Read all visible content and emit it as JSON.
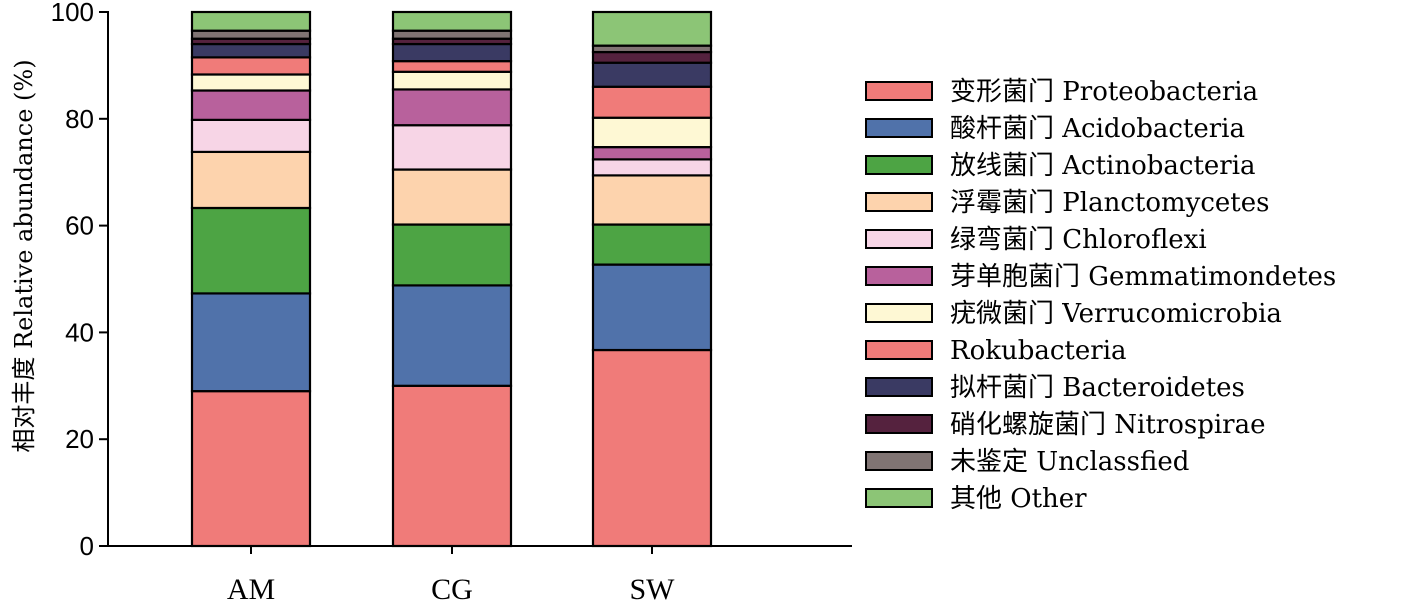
{
  "chart_data": {
    "type": "bar",
    "stacked": true,
    "title": "",
    "xlabel": "",
    "ylabel": "相对丰度 Relative abundance (%)",
    "ylim": [
      0,
      100
    ],
    "yticks": [
      0,
      20,
      40,
      60,
      80,
      100
    ],
    "categories": [
      "AM",
      "CG",
      "SW"
    ],
    "legend_position": "right",
    "grid": false,
    "series": [
      {
        "name": "变形菌门 Proteobacteria",
        "color": "#F07B79",
        "values": [
          29.0,
          30.0,
          36.7
        ]
      },
      {
        "name": "酸杆菌门 Acidobacteria",
        "color": "#5072AA",
        "values": [
          18.3,
          18.8,
          16.0
        ]
      },
      {
        "name": "放线菌门 Actinobacteria",
        "color": "#4DA444",
        "values": [
          16.0,
          11.4,
          7.5
        ]
      },
      {
        "name": "浮霉菌门 Planctomycetes",
        "color": "#FDD3AD",
        "values": [
          10.5,
          10.3,
          9.2
        ]
      },
      {
        "name": "绿弯菌门 Chloroflexi",
        "color": "#F7D5E6",
        "values": [
          6.0,
          8.3,
          3.0
        ]
      },
      {
        "name": "芽单胞菌门 Gemmatimondetes",
        "color": "#B8619C",
        "values": [
          5.5,
          6.7,
          2.3
        ]
      },
      {
        "name": "疣微菌门 Verrucomicrobia",
        "color": "#FEF8D4",
        "values": [
          3.0,
          3.3,
          5.5
        ]
      },
      {
        "name": "Rokubacteria",
        "color": "#F07B79",
        "values": [
          3.2,
          2.0,
          5.8
        ]
      },
      {
        "name": "拟杆菌门 Bacteroidetes",
        "color": "#3A3A63",
        "values": [
          2.5,
          3.2,
          4.5
        ]
      },
      {
        "name": "硝化螺旋菌门 Nitrospirae",
        "color": "#55223E",
        "values": [
          1.0,
          1.0,
          2.0
        ]
      },
      {
        "name": "未鉴定 Unclassfied",
        "color": "#807473",
        "values": [
          1.5,
          1.5,
          1.2
        ]
      },
      {
        "name": "其他 Other",
        "color": "#8CC576",
        "values": [
          3.5,
          3.5,
          6.3
        ]
      }
    ]
  }
}
